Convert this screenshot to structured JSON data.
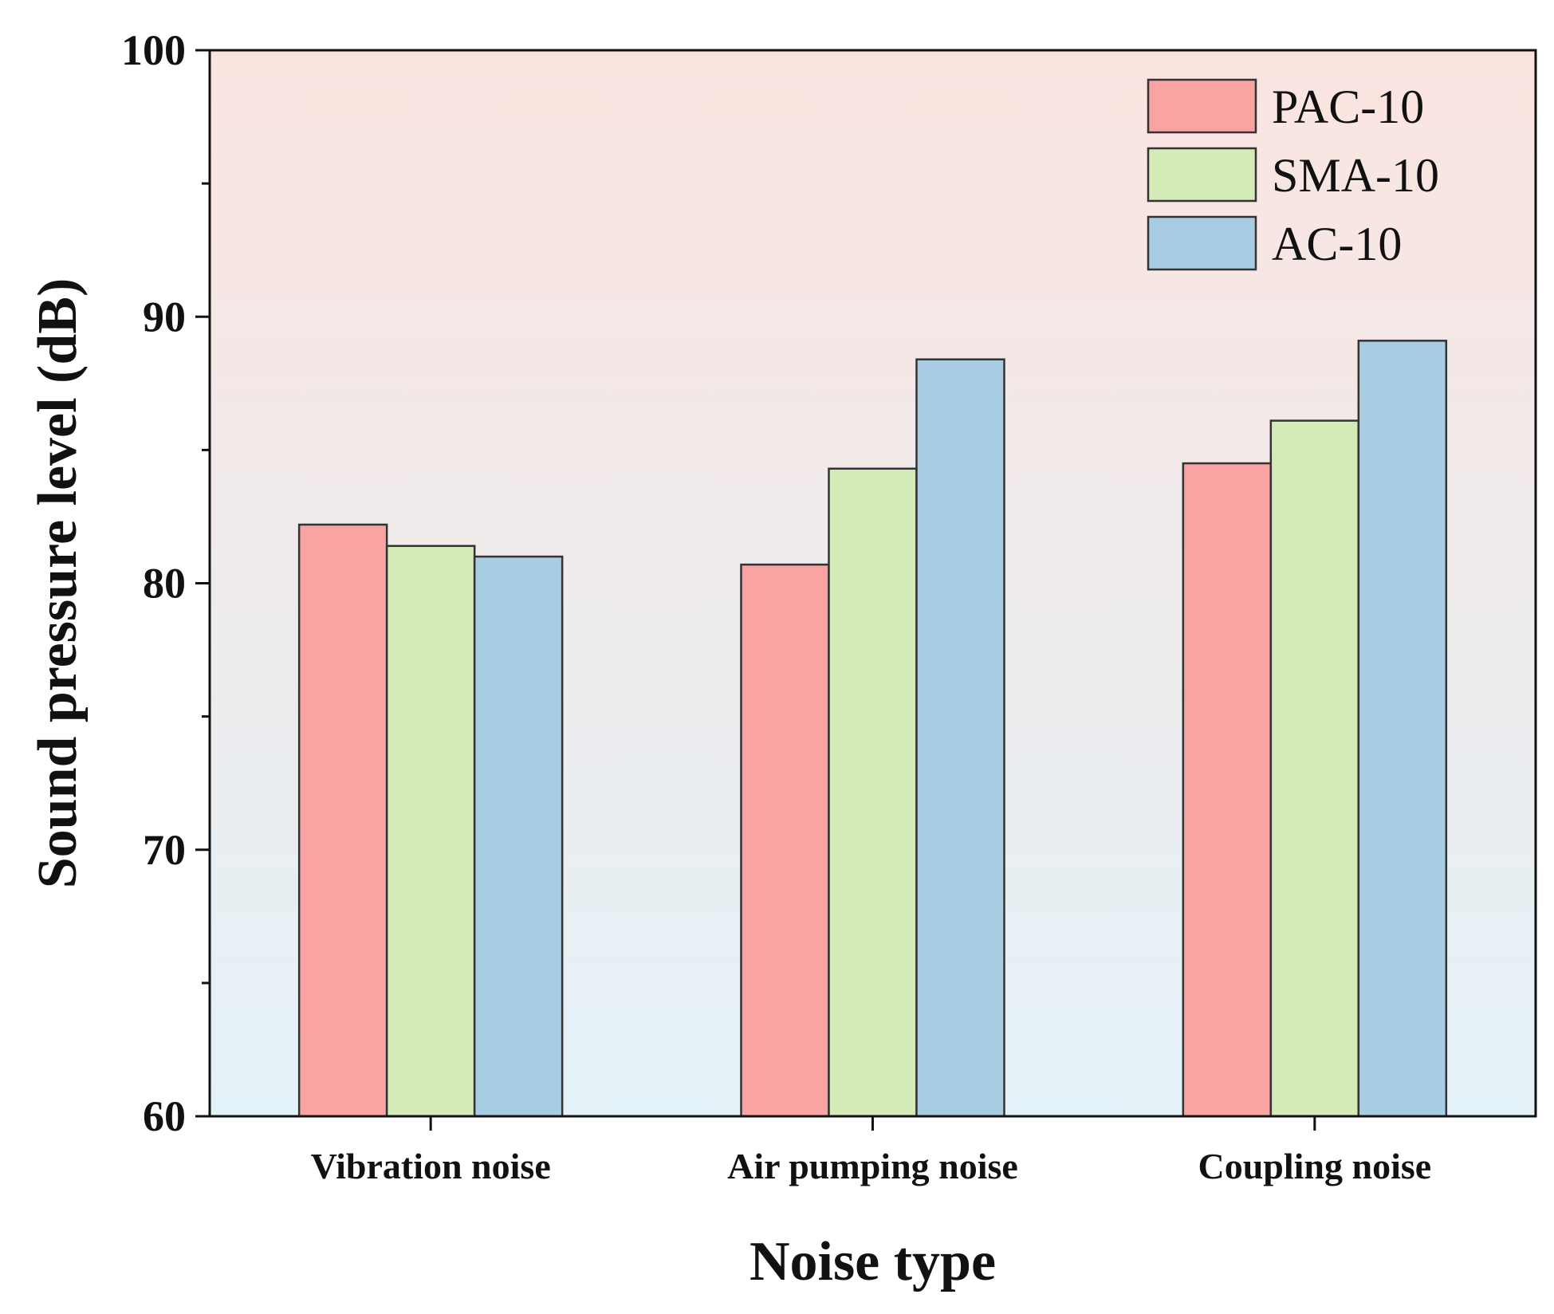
{
  "chart_data": {
    "type": "bar",
    "title": "",
    "xlabel": "Noise type",
    "ylabel": "Sound pressure level (dB)",
    "ylim": [
      60,
      100
    ],
    "y_major_ticks": [
      60,
      70,
      80,
      90,
      100
    ],
    "y_minor_step": 5,
    "grid": false,
    "legend_position": "top-right",
    "categories": [
      "Vibration noise",
      "Air pumping noise",
      "Coupling noise"
    ],
    "series": [
      {
        "name": "PAC-10",
        "color": "#f9a3a3",
        "values": [
          82.2,
          80.7,
          84.5
        ]
      },
      {
        "name": "SMA-10",
        "color": "#d4ebb7",
        "values": [
          81.4,
          84.3,
          86.1
        ]
      },
      {
        "name": "AC-10",
        "color": "#a8cde2",
        "values": [
          81.0,
          88.4,
          89.1
        ]
      }
    ],
    "background_gradient": {
      "top": "#fbe4e0",
      "bottom": "#e3f2f8"
    }
  }
}
